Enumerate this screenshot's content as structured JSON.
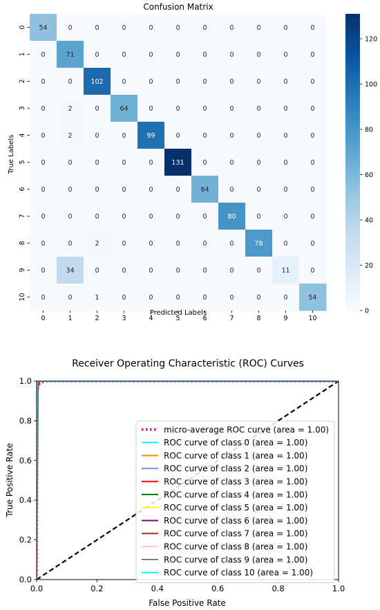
{
  "chart_data": [
    {
      "type": "heatmap",
      "title": "Confusion Matrix",
      "xlabel": "Predicted Labels",
      "ylabel": "True Labels",
      "x_categories": [
        "0",
        "1",
        "2",
        "3",
        "4",
        "5",
        "6",
        "7",
        "8",
        "9",
        "10"
      ],
      "y_categories": [
        "0",
        "1",
        "2",
        "3",
        "4",
        "5",
        "6",
        "7",
        "8",
        "9",
        "10"
      ],
      "values": [
        [
          54,
          0,
          0,
          0,
          0,
          0,
          0,
          0,
          0,
          0,
          0
        ],
        [
          0,
          71,
          0,
          0,
          0,
          0,
          0,
          0,
          0,
          0,
          0
        ],
        [
          0,
          0,
          102,
          0,
          0,
          0,
          0,
          0,
          0,
          0,
          0
        ],
        [
          0,
          2,
          0,
          64,
          0,
          0,
          0,
          0,
          0,
          0,
          0
        ],
        [
          0,
          2,
          0,
          0,
          99,
          0,
          0,
          0,
          0,
          0,
          0
        ],
        [
          0,
          0,
          0,
          0,
          0,
          131,
          0,
          0,
          0,
          0,
          0
        ],
        [
          0,
          0,
          0,
          0,
          0,
          0,
          64,
          0,
          0,
          0,
          0
        ],
        [
          0,
          0,
          0,
          0,
          0,
          0,
          0,
          80,
          0,
          0,
          0
        ],
        [
          0,
          0,
          2,
          0,
          0,
          0,
          0,
          0,
          78,
          0,
          0
        ],
        [
          0,
          34,
          0,
          0,
          0,
          0,
          0,
          0,
          0,
          11,
          0
        ],
        [
          0,
          0,
          1,
          0,
          0,
          0,
          0,
          0,
          0,
          0,
          54
        ]
      ],
      "colorbar": {
        "min": 0,
        "max": 131,
        "ticks": [
          0,
          20,
          40,
          60,
          80,
          100,
          120
        ]
      },
      "colormap": {
        "low": "#f7fbff",
        "high": "#08306b"
      }
    },
    {
      "type": "line",
      "title": "Receiver Operating Characteristic (ROC) Curves",
      "xlabel": "False Positive Rate",
      "ylabel": "True Positive Rate",
      "xlim": [
        0.0,
        1.0
      ],
      "ylim": [
        0.0,
        1.0
      ],
      "xticks": [
        "0.0",
        "0.2",
        "0.4",
        "0.6",
        "0.8",
        "1.0"
      ],
      "yticks": [
        "0.0",
        "0.2",
        "0.4",
        "0.6",
        "0.8",
        "1.0"
      ],
      "legend_position": "lower-right",
      "diagonal": {
        "x": [
          0,
          1
        ],
        "y": [
          0,
          1
        ],
        "color": "#000000",
        "style": "dashed"
      },
      "series": [
        {
          "name": "micro-average ROC curve (area = 1.00)",
          "color": "#ff1493",
          "style": "dotted",
          "x": [
            0,
            0.003,
            0.01,
            0.03,
            1.0
          ],
          "y": [
            0,
            0.96,
            0.99,
            1.0,
            1.0
          ]
        },
        {
          "name": "ROC curve of class 0 (area = 1.00)",
          "color": "#00ffff",
          "style": "solid",
          "x": [
            0,
            0,
            1.0
          ],
          "y": [
            0,
            1.0,
            1.0
          ]
        },
        {
          "name": "ROC curve of class 1 (area = 1.00)",
          "color": "#ff8c00",
          "style": "solid",
          "x": [
            0,
            0.004,
            1.0
          ],
          "y": [
            0,
            1.0,
            1.0
          ]
        },
        {
          "name": "ROC curve of class 2 (area = 1.00)",
          "color": "#6495ed",
          "style": "solid",
          "x": [
            0,
            0.002,
            1.0
          ],
          "y": [
            0,
            1.0,
            1.0
          ]
        },
        {
          "name": "ROC curve of class 3 (area = 1.00)",
          "color": "#ff0000",
          "style": "solid",
          "x": [
            0,
            0.005,
            0.01,
            1.0
          ],
          "y": [
            0,
            0.97,
            1.0,
            1.0
          ]
        },
        {
          "name": "ROC curve of class 4 (area = 1.00)",
          "color": "#008000",
          "style": "solid",
          "x": [
            0,
            0.004,
            1.0
          ],
          "y": [
            0,
            1.0,
            1.0
          ]
        },
        {
          "name": "ROC curve of class 5 (area = 1.00)",
          "color": "#ffff00",
          "style": "solid",
          "x": [
            0,
            0,
            1.0
          ],
          "y": [
            0,
            1.0,
            1.0
          ]
        },
        {
          "name": "ROC curve of class 6 (area = 1.00)",
          "color": "#800080",
          "style": "solid",
          "x": [
            0,
            0,
            1.0
          ],
          "y": [
            0,
            1.0,
            1.0
          ]
        },
        {
          "name": "ROC curve of class 7 (area = 1.00)",
          "color": "#a52a2a",
          "style": "solid",
          "x": [
            0,
            0,
            1.0
          ],
          "y": [
            0,
            1.0,
            1.0
          ]
        },
        {
          "name": "ROC curve of class 8 (area = 1.00)",
          "color": "#ffc0cb",
          "style": "solid",
          "x": [
            0,
            0.003,
            1.0
          ],
          "y": [
            0,
            1.0,
            1.0
          ]
        },
        {
          "name": "ROC curve of class 9 (area = 1.00)",
          "color": "#808080",
          "style": "solid",
          "x": [
            0,
            0.004,
            1.0
          ],
          "y": [
            0,
            1.0,
            1.0
          ]
        },
        {
          "name": "ROC curve of class 10 (area = 1.00)",
          "color": "#00ffff",
          "style": "solid",
          "x": [
            0,
            0.001,
            1.0
          ],
          "y": [
            0,
            1.0,
            1.0
          ]
        }
      ]
    }
  ]
}
